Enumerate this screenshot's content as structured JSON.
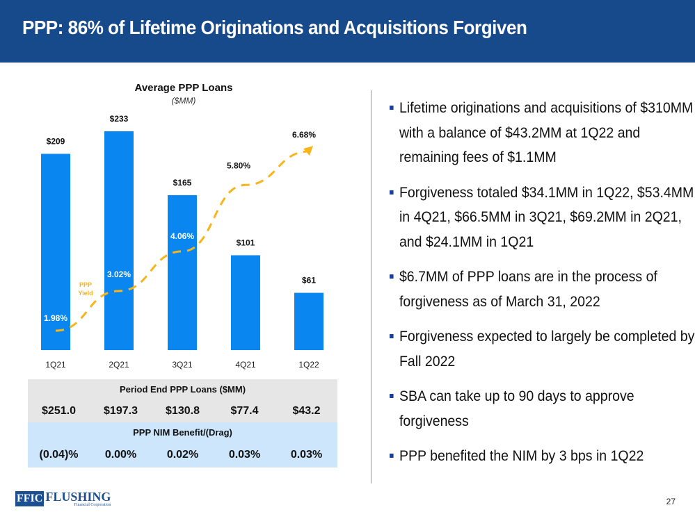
{
  "header": {
    "title": "PPP: 86% of Lifetime Originations and Acquisitions Forgiven"
  },
  "chart_data": {
    "type": "bar",
    "title": "Average PPP Loans",
    "subtitle": "($MM)",
    "xlabel": "",
    "ylabel": "",
    "categories": [
      "1Q21",
      "2Q21",
      "3Q21",
      "4Q21",
      "1Q22"
    ],
    "series": [
      {
        "name": "Average PPP Loans",
        "type": "bar",
        "values": [
          209,
          233,
          165,
          101,
          61
        ],
        "labels": [
          "$209",
          "$233",
          "$165",
          "$101",
          "$61"
        ],
        "color": "#0a86f0"
      },
      {
        "name": "PPP Yield",
        "type": "line",
        "style": "dashed",
        "values": [
          1.98,
          3.02,
          4.06,
          5.8,
          6.68
        ],
        "labels": [
          "1.98%",
          "3.02%",
          "4.06%",
          "5.80%",
          "6.68%"
        ],
        "color": "#f5b51b",
        "legend_label": [
          "PPP",
          "Yield"
        ]
      }
    ],
    "ylim": [
      0,
      233
    ],
    "y2lim": [
      0,
      7.5
    ],
    "grid": false
  },
  "table": {
    "period_end_header": "Period End PPP Loans ($MM)",
    "period_end_values": [
      "$251.0",
      "$197.3",
      "$130.8",
      "$77.4",
      "$43.2"
    ],
    "nim_header": "PPP NIM Benefit/(Drag)",
    "nim_values": [
      "(0.04)%",
      "0.00%",
      "0.02%",
      "0.03%",
      "0.03%"
    ]
  },
  "bullets": [
    "Lifetime originations and acquisitions of $310MM with a balance of $43.2MM at 1Q22 and remaining fees of $1.1MM",
    "Forgiveness totaled $34.1MM in 1Q22, $53.4MM in 4Q21, $66.5MM in 3Q21, $69.2MM in 2Q21, and $24.1MM in 1Q21",
    "$6.7MM of PPP loans are in the process of forgiveness as of March 31, 2022",
    "Forgiveness expected to largely be completed by Fall 2022",
    "SBA can take up to 90 days to approve forgiveness",
    "PPP benefited the NIM by 3 bps in 1Q22"
  ],
  "footer": {
    "logo_mark": "FFIC",
    "logo_name": "FLUSHING",
    "logo_sub": "Financial Corporation",
    "page_number": "27"
  }
}
